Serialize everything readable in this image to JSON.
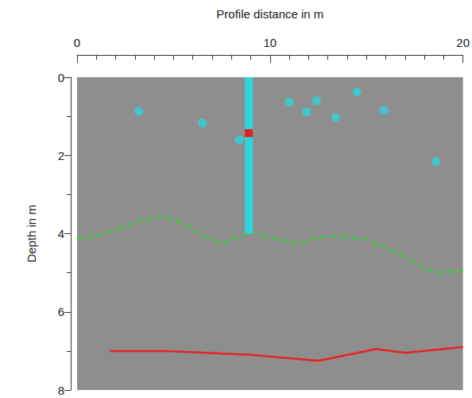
{
  "chart_data": {
    "type": "scatter",
    "x_label": "Profile distance in m",
    "y_label": "Depth in m",
    "xlim": [
      0,
      20
    ],
    "xticks": [
      0,
      10,
      20
    ],
    "ylim": [
      0,
      8
    ],
    "yticks": [
      0,
      2,
      4,
      6,
      8
    ],
    "grid": false,
    "series": [
      {
        "type": "scatter",
        "color": "#2fd3db",
        "marker": "circle",
        "x": [
          3.2,
          6.5,
          8.4,
          11.0,
          11.9,
          12.4,
          13.4,
          14.5,
          15.9,
          18.6
        ],
        "values": [
          0.87,
          1.17,
          1.6,
          0.63,
          0.89,
          0.6,
          1.03,
          0.38,
          0.85,
          2.16
        ]
      },
      {
        "type": "line",
        "color": "#3dcc3d",
        "line_style": "dashed",
        "x": [
          0,
          1.5,
          3,
          4.5,
          5.5,
          6.5,
          7.5,
          8.3,
          9,
          10,
          11.5,
          12.5,
          13.5,
          15,
          16,
          17,
          18.5,
          20
        ],
        "values": [
          4.15,
          4.0,
          3.7,
          3.55,
          3.75,
          4.05,
          4.25,
          4.1,
          3.95,
          4.1,
          4.25,
          4.1,
          4.05,
          4.15,
          4.35,
          4.6,
          5.0,
          4.95
        ]
      },
      {
        "type": "line",
        "color": "#e62222",
        "line_style": "solid",
        "x": [
          1.7,
          4.5,
          9,
          12.5,
          15.5,
          17,
          20
        ],
        "values": [
          7.0,
          7.0,
          7.1,
          7.25,
          6.95,
          7.05,
          6.9
        ]
      },
      {
        "type": "line",
        "color": "#2fd3db",
        "line_style": "thick",
        "x": [
          8.9,
          8.9
        ],
        "values": [
          0,
          4.0
        ]
      },
      {
        "type": "line",
        "color": "#e02020",
        "line_style": "thick",
        "x": [
          8.9,
          8.9
        ],
        "values": [
          1.33,
          1.53
        ]
      }
    ]
  }
}
